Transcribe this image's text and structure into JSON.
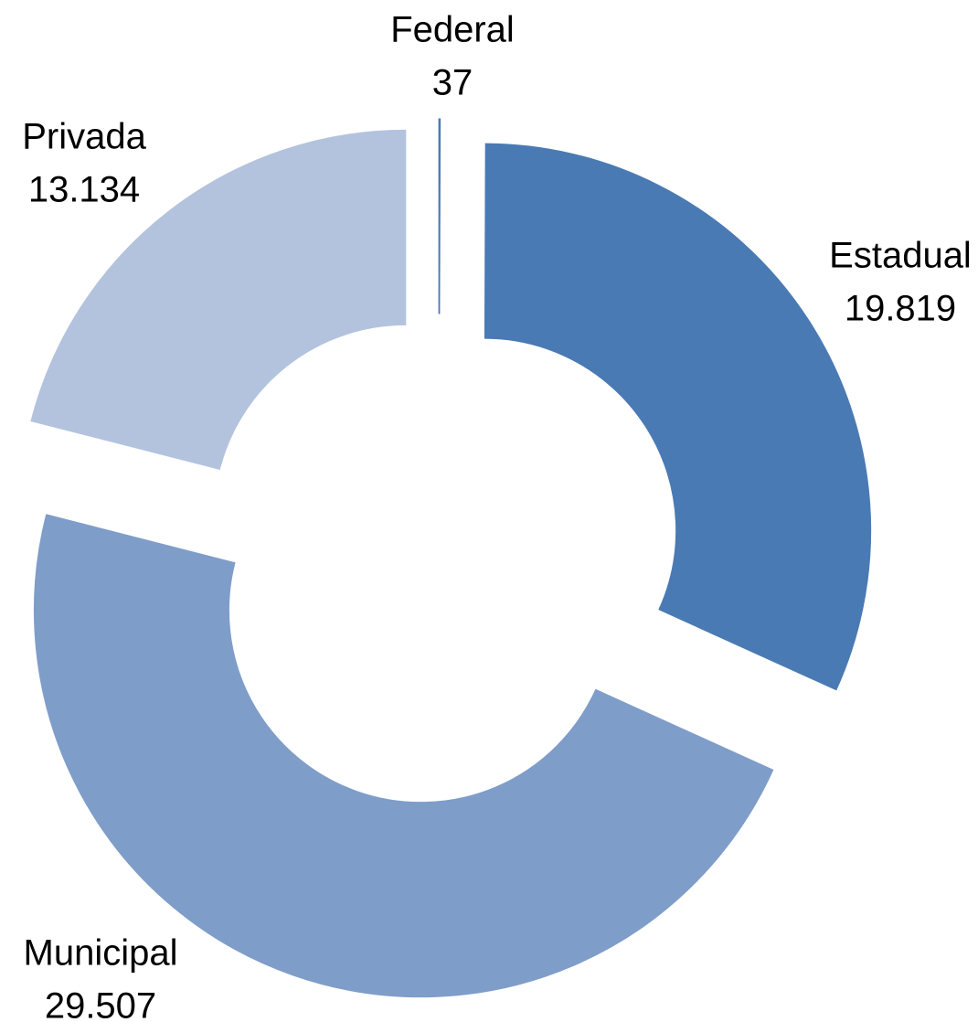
{
  "chart_data": {
    "type": "donut",
    "categories": [
      "Federal",
      "Estadual",
      "Municipal",
      "Privada"
    ],
    "values": [
      37,
      19819,
      29507,
      13134
    ],
    "value_labels": [
      "37",
      "19.819",
      "29.507",
      "13.134"
    ],
    "colors": [
      "#4a7ab3",
      "#4a7ab3",
      "#7f9dc9",
      "#b3c3de"
    ]
  }
}
